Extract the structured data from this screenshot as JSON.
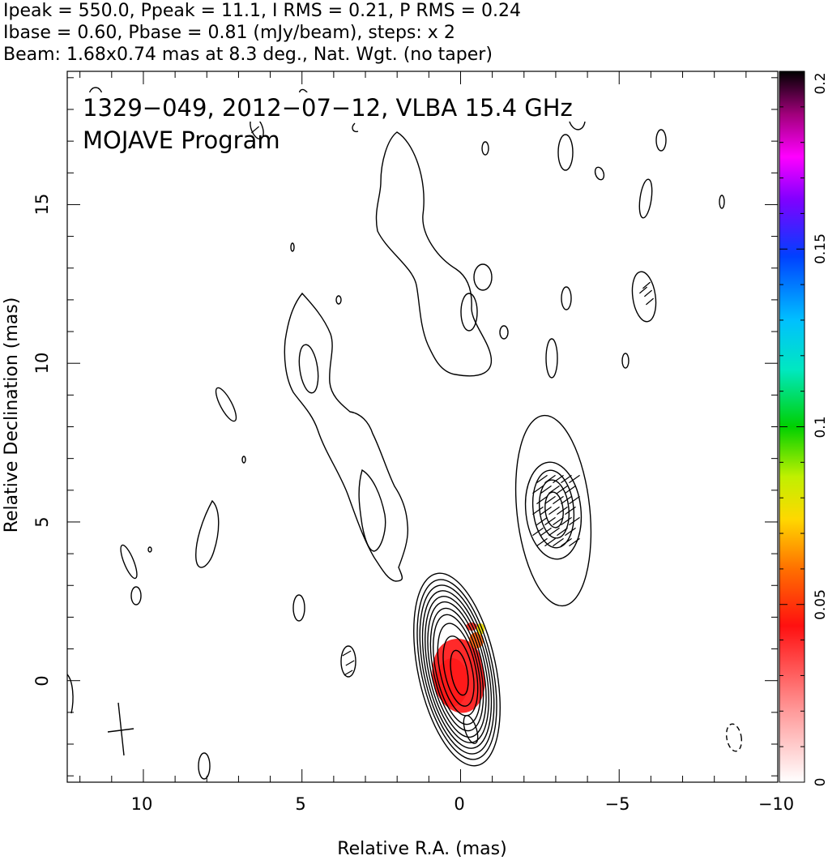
{
  "header": {
    "line1": "Ipeak = 550.0, Ppeak = 11.1, I RMS = 0.21, P RMS = 0.24",
    "line2": "Ibase = 0.60, Pbase = 0.81 (mJy/beam), steps: x 2",
    "line3": "Beam: 1.68x0.74 mas at 8.3 deg., Nat. Wgt. (no taper)"
  },
  "chart_data": {
    "type": "contour map with polarization colour image",
    "title": "1329−049, 2012−07−12, VLBA 15.4 GHz",
    "subtitle": "MOJAVE Program",
    "xlabel": "Relative R.A. (mas)",
    "ylabel": "Relative Declination (mas)",
    "xlim": [
      12.4,
      -10.0
    ],
    "ylim": [
      -3.2,
      19.2
    ],
    "xticks": [
      10,
      5,
      0,
      -5,
      -10
    ],
    "xtick_labels": [
      "10",
      "5",
      "0",
      "−5",
      "−10"
    ],
    "yticks": [
      0,
      5,
      10,
      15
    ],
    "ytick_labels": [
      "0",
      "5",
      "10",
      "15"
    ],
    "peak_intensity_mJy_per_beam": 550.0,
    "peak_polarized_mJy_per_beam": 11.1,
    "contour_base_mJy_per_beam": 0.6,
    "contour_step_factor": 2,
    "beam": {
      "major_mas": 1.68,
      "minor_mas": 0.74,
      "pa_deg": 8.3
    },
    "components": [
      {
        "name": "core",
        "ra": 0.0,
        "dec": 0.3,
        "contour_levels": 11
      },
      {
        "name": "knot",
        "ra": -2.9,
        "dec": 5.5,
        "contour_levels": 5
      }
    ],
    "colorbar": {
      "ticks": [
        0,
        0.05,
        0.1,
        0.15,
        0.2
      ],
      "tick_labels": [
        "0",
        "0.05",
        "0.1",
        "0.15",
        "0.2"
      ],
      "range": [
        0,
        0.2
      ]
    }
  }
}
